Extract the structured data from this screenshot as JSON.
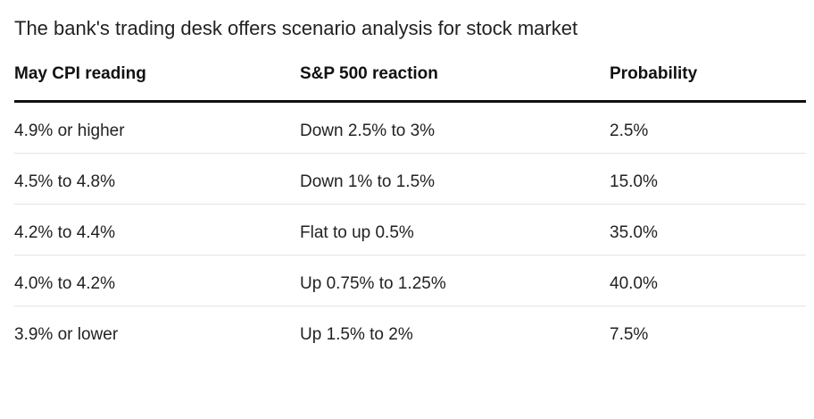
{
  "title": "The bank's trading desk offers scenario analysis for stock market",
  "table": {
    "headers": [
      "May CPI reading",
      "S&P 500 reaction",
      "Probability"
    ],
    "rows": [
      [
        "4.9% or higher",
        "Down 2.5% to 3%",
        "2.5%"
      ],
      [
        "4.5% to 4.8%",
        "Down 1% to 1.5%",
        "15.0%"
      ],
      [
        "4.2% to 4.4%",
        "Flat to up 0.5%",
        "35.0%"
      ],
      [
        "4.0% to 4.2%",
        "Up 0.75% to 1.25%",
        "40.0%"
      ],
      [
        "3.9% or lower",
        "Up 1.5% to 2%",
        "7.5%"
      ]
    ]
  }
}
